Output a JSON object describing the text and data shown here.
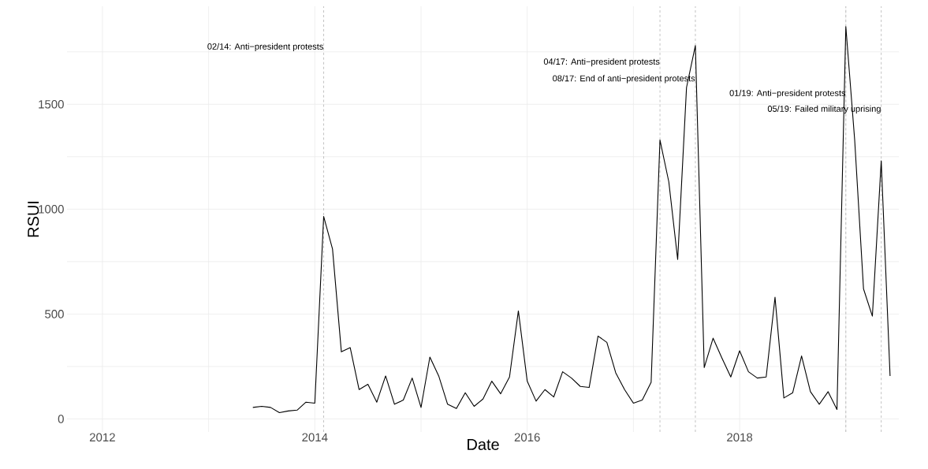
{
  "chart_data": {
    "type": "line",
    "xlabel": "Date",
    "ylabel": "RSUI",
    "color": "#000000",
    "x": [
      "2013-06",
      "2013-07",
      "2013-08",
      "2013-09",
      "2013-10",
      "2013-11",
      "2013-12",
      "2014-01",
      "2014-02",
      "2014-03",
      "2014-04",
      "2014-05",
      "2014-06",
      "2014-07",
      "2014-08",
      "2014-09",
      "2014-10",
      "2014-11",
      "2014-12",
      "2015-01",
      "2015-02",
      "2015-03",
      "2015-04",
      "2015-05",
      "2015-06",
      "2015-07",
      "2015-08",
      "2015-09",
      "2015-10",
      "2015-11",
      "2015-12",
      "2016-01",
      "2016-02",
      "2016-03",
      "2016-04",
      "2016-05",
      "2016-06",
      "2016-07",
      "2016-08",
      "2016-09",
      "2016-10",
      "2016-11",
      "2016-12",
      "2017-01",
      "2017-02",
      "2017-03",
      "2017-04",
      "2017-05",
      "2017-06",
      "2017-07",
      "2017-08",
      "2017-09",
      "2017-10",
      "2017-11",
      "2017-12",
      "2018-01",
      "2018-02",
      "2018-03",
      "2018-04",
      "2018-05",
      "2018-06",
      "2018-07",
      "2018-08",
      "2018-09",
      "2018-10",
      "2018-11",
      "2018-12",
      "2019-01",
      "2019-02",
      "2019-03",
      "2019-04",
      "2019-05",
      "2019-06"
    ],
    "values": [
      55,
      60,
      55,
      30,
      38,
      42,
      80,
      75,
      965,
      810,
      320,
      340,
      140,
      165,
      80,
      205,
      70,
      90,
      195,
      55,
      295,
      205,
      70,
      50,
      125,
      60,
      95,
      180,
      120,
      200,
      515,
      180,
      85,
      140,
      105,
      225,
      195,
      155,
      150,
      395,
      365,
      220,
      140,
      75,
      90,
      175,
      1330,
      1130,
      760,
      1580,
      1780,
      245,
      385,
      290,
      200,
      325,
      225,
      195,
      200,
      580,
      100,
      125,
      300,
      130,
      70,
      130,
      45,
      1870,
      1330,
      620,
      490,
      1230,
      205
    ],
    "xlim": [
      "2011-09",
      "2019-07"
    ],
    "xticks": [
      {
        "value": "2012",
        "label": "2012"
      },
      {
        "value": "2013",
        "label": null
      },
      {
        "value": "2014",
        "label": "2014"
      },
      {
        "value": "2015",
        "label": null
      },
      {
        "value": "2016",
        "label": "2016"
      },
      {
        "value": "2017",
        "label": null
      },
      {
        "value": "2018",
        "label": "2018"
      },
      {
        "value": "2019",
        "label": null
      }
    ],
    "ylim": [
      -62,
      1967
    ],
    "yticks": [
      0,
      {
        "value": 250,
        "label": null
      },
      500,
      {
        "value": 750,
        "label": null
      },
      1000,
      {
        "value": 1250,
        "label": null
      },
      1500,
      {
        "value": 1750,
        "label": null
      }
    ],
    "grid": true,
    "ref_lines": [
      {
        "axis": "x",
        "value": "2014-02",
        "color": "#999999",
        "line_style": "dashed"
      },
      {
        "axis": "x",
        "value": "2017-04",
        "color": "#999999",
        "line_style": "dashed"
      },
      {
        "axis": "x",
        "value": "2017-08",
        "color": "#999999",
        "line_style": "dashed"
      },
      {
        "axis": "x",
        "value": "2019-01",
        "color": "#999999",
        "line_style": "dashed"
      },
      {
        "axis": "x",
        "value": "2019-05",
        "color": "#999999",
        "line_style": "dashed"
      }
    ],
    "annotations": [
      {
        "text": "02/14: Anti−president protests",
        "x": "2014-02",
        "y": 1772
      },
      {
        "text": "04/17: Anti−president protests",
        "x": "2017-04",
        "y": 1700
      },
      {
        "text": "08/17: End of anti−president protests",
        "x": "2017-08",
        "y": 1620
      },
      {
        "text": "01/19: Anti−president protests",
        "x": "2019-01",
        "y": 1550
      },
      {
        "text": "05/19: Failed military uprising",
        "x": "2019-05",
        "y": 1475
      }
    ]
  }
}
